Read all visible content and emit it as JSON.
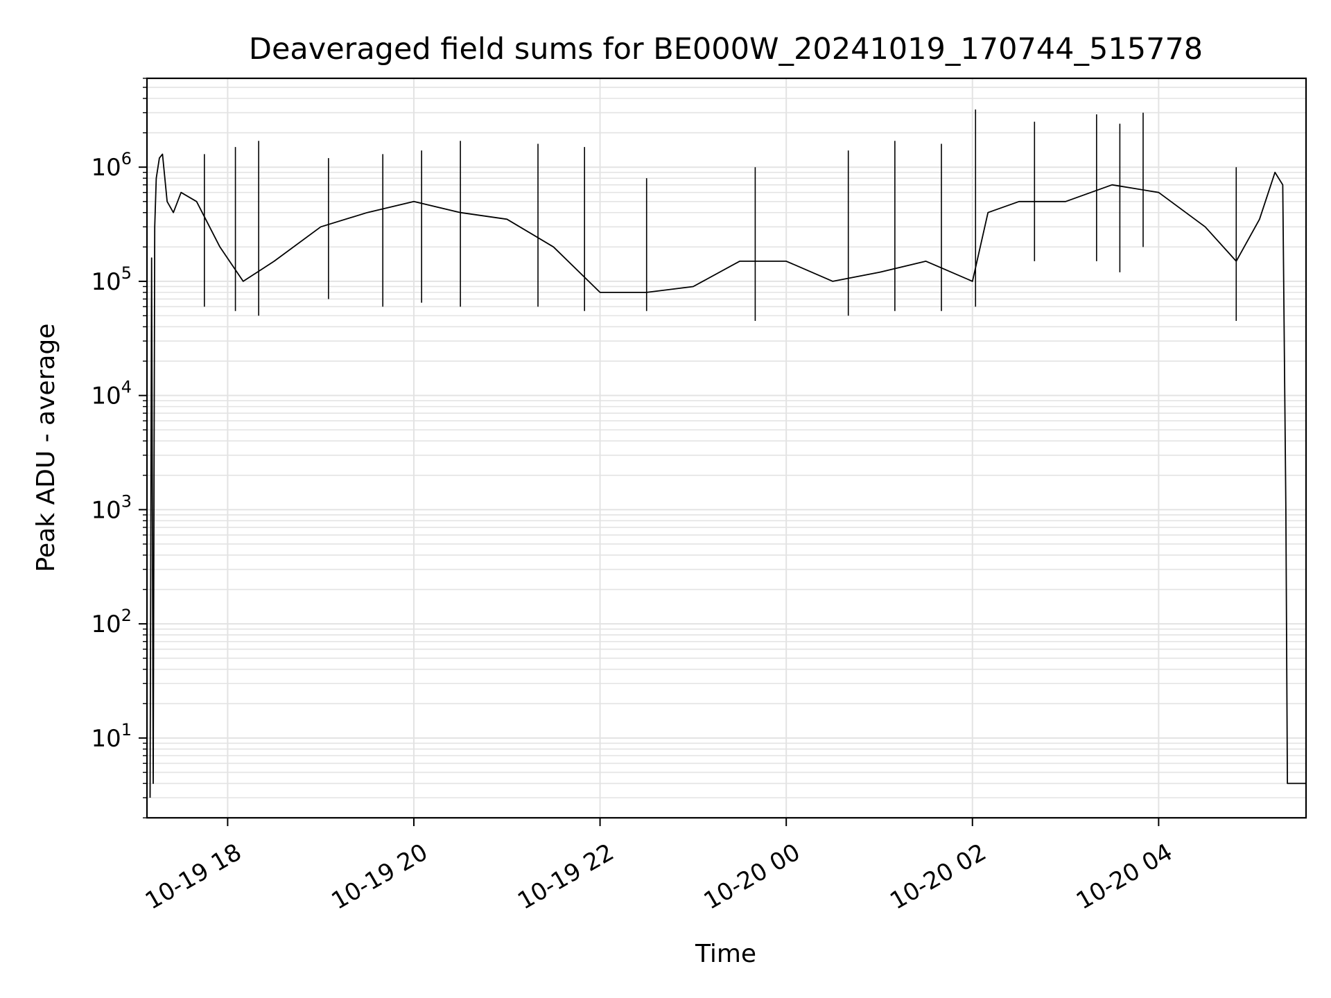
{
  "chart_data": {
    "type": "line",
    "title": "Deaveraged field sums for BE000W_20241019_170744_515778",
    "xlabel": "Time",
    "ylabel": "Peak ADU - average",
    "yscale": "log",
    "ylim": [
      2,
      6000000
    ],
    "xlim": [
      "2024-10-19 17:08",
      "2024-10-20 05:35"
    ],
    "grid": true,
    "line_color": "#000000",
    "grid_color": "#e3e3e3",
    "x_ticks": [
      {
        "label": "10-19 18",
        "value": "2024-10-19 18:00"
      },
      {
        "label": "10-19 20",
        "value": "2024-10-19 20:00"
      },
      {
        "label": "10-19 22",
        "value": "2024-10-19 22:00"
      },
      {
        "label": "10-20 00",
        "value": "2024-10-20 00:00"
      },
      {
        "label": "10-20 02",
        "value": "2024-10-20 02:00"
      },
      {
        "label": "10-20 04",
        "value": "2024-10-20 04:00"
      }
    ],
    "y_ticks": [
      {
        "base": "10",
        "exp": "1",
        "value": 10
      },
      {
        "base": "10",
        "exp": "2",
        "value": 100
      },
      {
        "base": "10",
        "exp": "3",
        "value": 1000
      },
      {
        "base": "10",
        "exp": "4",
        "value": 10000
      },
      {
        "base": "10",
        "exp": "5",
        "value": 100000
      },
      {
        "base": "10",
        "exp": "6",
        "value": 1000000
      }
    ],
    "series": [
      {
        "x": [
          "2024-10-19 17:10",
          "2024-10-19 17:11",
          "2024-10-19 17:12",
          "2024-10-19 17:13",
          "2024-10-19 17:14",
          "2024-10-19 17:16",
          "2024-10-19 17:18",
          "2024-10-19 17:21",
          "2024-10-19 17:25",
          "2024-10-19 17:30",
          "2024-10-19 17:40",
          "2024-10-19 17:55",
          "2024-10-19 18:10",
          "2024-10-19 18:30",
          "2024-10-19 19:00",
          "2024-10-19 19:30",
          "2024-10-19 20:00",
          "2024-10-19 20:30",
          "2024-10-19 21:00",
          "2024-10-19 21:30",
          "2024-10-19 22:00",
          "2024-10-19 22:30",
          "2024-10-19 23:00",
          "2024-10-19 23:30",
          "2024-10-20 00:00",
          "2024-10-20 00:30",
          "2024-10-20 01:00",
          "2024-10-20 01:30",
          "2024-10-20 02:00",
          "2024-10-20 02:10",
          "2024-10-20 02:30",
          "2024-10-20 03:00",
          "2024-10-20 03:30",
          "2024-10-20 04:00",
          "2024-10-20 04:30",
          "2024-10-20 04:50",
          "2024-10-20 05:05",
          "2024-10-20 05:15",
          "2024-10-20 05:20",
          "2024-10-20 05:22",
          "2024-10-20 05:23",
          "2024-10-20 05:35"
        ],
        "y": [
          3,
          160000,
          4,
          300000,
          800000,
          1200000,
          1300000,
          500000,
          400000,
          600000,
          500000,
          200000,
          100000,
          150000,
          300000,
          400000,
          500000,
          400000,
          350000,
          200000,
          80000,
          80000,
          90000,
          150000,
          150000,
          100000,
          120000,
          150000,
          100000,
          400000,
          500000,
          500000,
          700000,
          600000,
          300000,
          150000,
          350000,
          900000,
          700000,
          1000,
          4,
          4
        ],
        "spikes": {
          "x": [
            "2024-10-19 17:45",
            "2024-10-19 18:05",
            "2024-10-19 18:20",
            "2024-10-19 19:05",
            "2024-10-19 19:40",
            "2024-10-19 20:05",
            "2024-10-19 20:30",
            "2024-10-19 21:20",
            "2024-10-19 21:50",
            "2024-10-19 22:30",
            "2024-10-19 23:40",
            "2024-10-20 00:40",
            "2024-10-20 01:10",
            "2024-10-20 01:40",
            "2024-10-20 02:02",
            "2024-10-20 02:40",
            "2024-10-20 03:20",
            "2024-10-20 03:35",
            "2024-10-20 03:50",
            "2024-10-20 04:50"
          ],
          "y": [
            1300000,
            1500000,
            1700000,
            1200000,
            1300000,
            1400000,
            1700000,
            1600000,
            1500000,
            800000,
            1000000,
            1400000,
            1700000,
            1600000,
            3200000,
            2500000,
            2900000,
            2400000,
            3000000,
            1000000
          ],
          "low": [
            60000,
            55000,
            50000,
            70000,
            60000,
            65000,
            60000,
            60000,
            55000,
            55000,
            45000,
            50000,
            55000,
            55000,
            60000,
            150000,
            150000,
            120000,
            200000,
            45000
          ]
        }
      }
    ]
  }
}
